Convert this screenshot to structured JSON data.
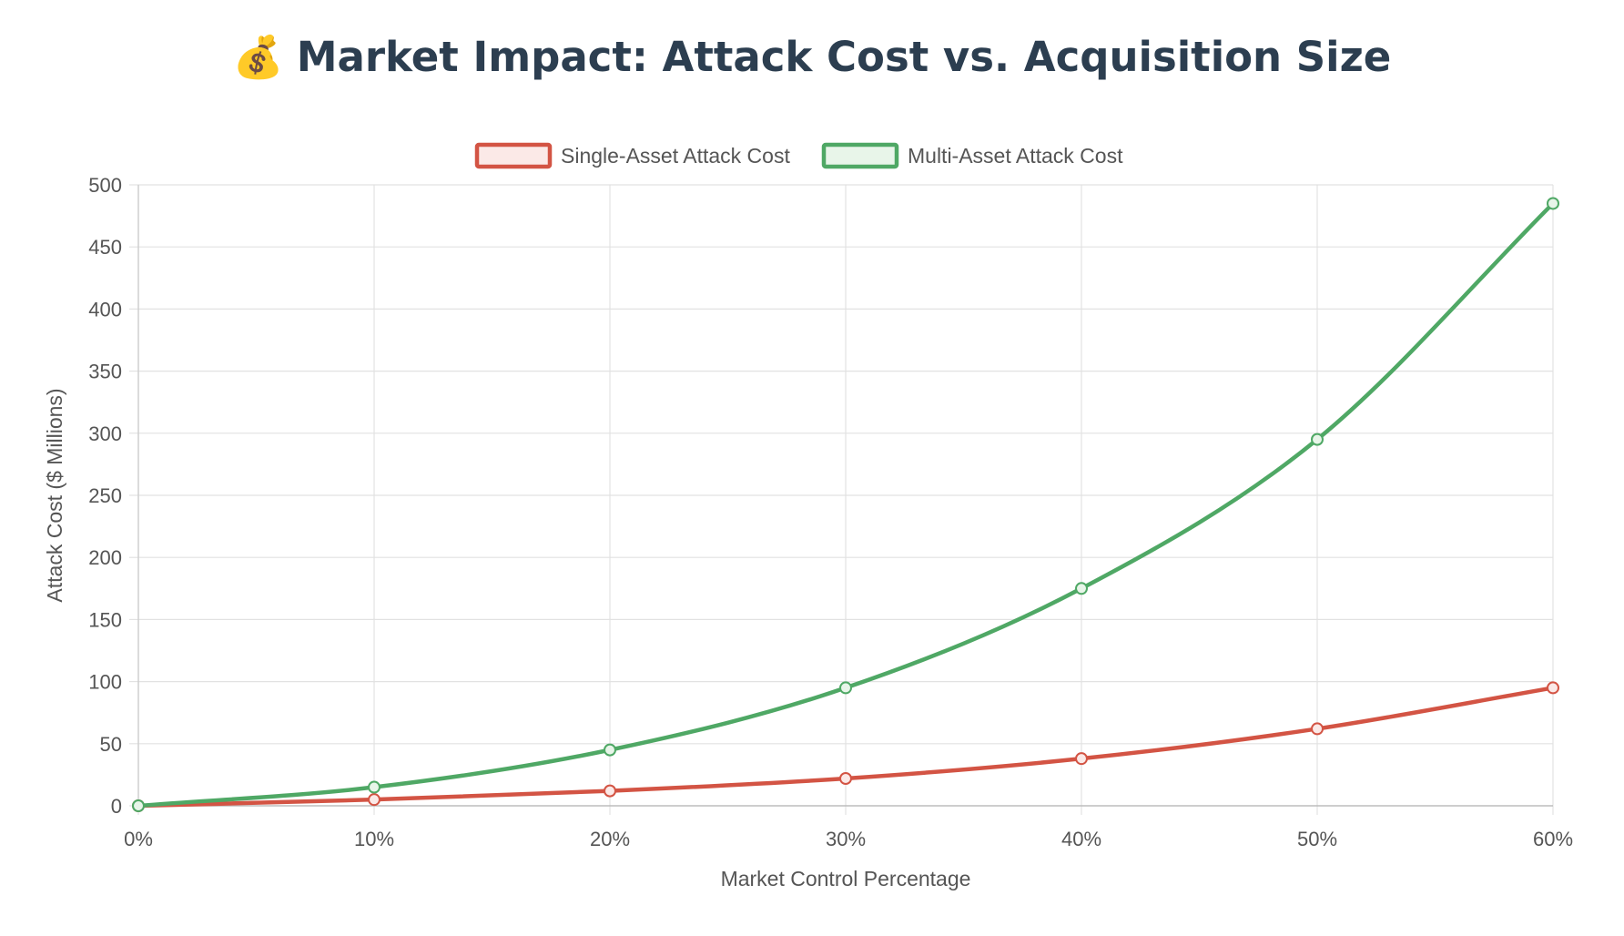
{
  "title_emoji": "💰",
  "title_text": "Market Impact: Attack Cost vs. Acquisition Size",
  "chart_data": {
    "type": "line",
    "title": "💰 Market Impact: Attack Cost vs. Acquisition Size",
    "xlabel": "Market Control Percentage",
    "ylabel": "Attack Cost ($ Millions)",
    "categories": [
      "0%",
      "10%",
      "20%",
      "30%",
      "40%",
      "50%",
      "60%"
    ],
    "ylim": [
      0,
      500
    ],
    "y_ticks": [
      0,
      50,
      100,
      150,
      200,
      250,
      300,
      350,
      400,
      450,
      500
    ],
    "grid": true,
    "legend_position": "top-center",
    "series": [
      {
        "name": "Single-Asset Attack Cost",
        "color": "#d35444",
        "fill": "#fbe9e7",
        "values": [
          0,
          5,
          12,
          22,
          38,
          62,
          95
        ]
      },
      {
        "name": "Multi-Asset Attack Cost",
        "color": "#4fa865",
        "fill": "#e8f5e9",
        "values": [
          0,
          15,
          45,
          95,
          175,
          295,
          485
        ]
      }
    ]
  }
}
